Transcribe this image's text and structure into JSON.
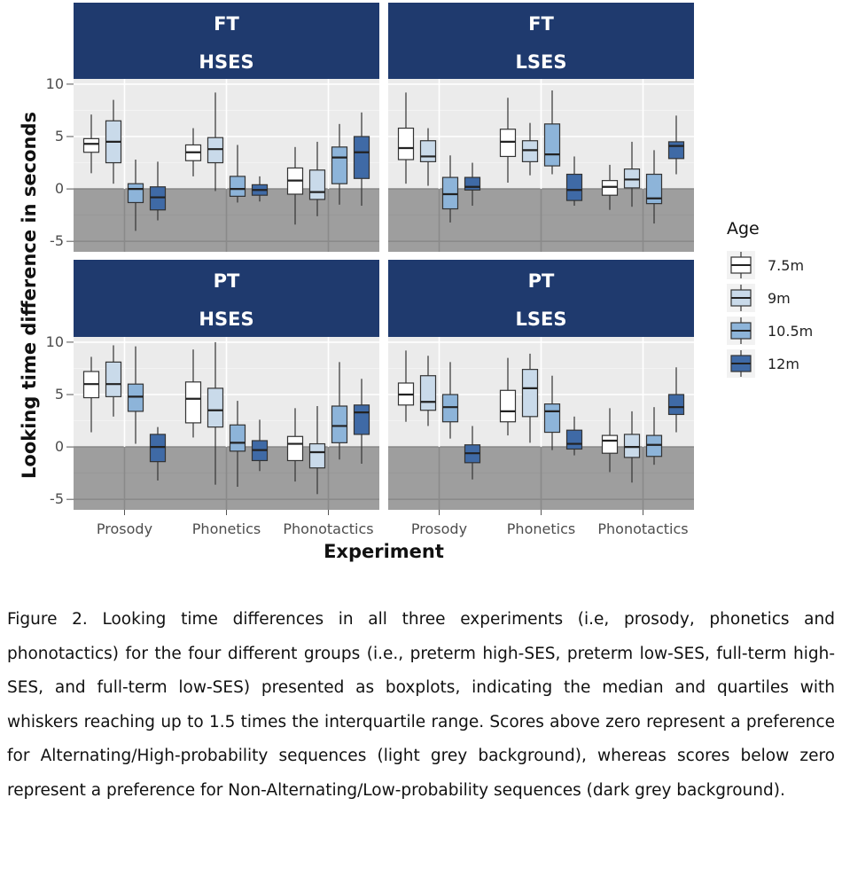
{
  "chart_data": {
    "type": "boxplot",
    "xlabel": "Experiment",
    "ylabel": "Looking time difference in seconds",
    "ylim": [
      -6,
      10.5
    ],
    "yticks": [
      -5,
      0,
      5,
      10
    ],
    "categories": [
      "Prosody",
      "Phonetics",
      "Phonotactics"
    ],
    "legend": {
      "title": "Age",
      "position": "right",
      "entries": [
        {
          "label": "7.5m",
          "color": "#ffffff"
        },
        {
          "label": "9m",
          "color": "#c9daea"
        },
        {
          "label": "10.5m",
          "color": "#8db4d9"
        },
        {
          "label": "12m",
          "color": "#3f6aa6"
        }
      ]
    },
    "panels": [
      {
        "strip_top": "FT",
        "strip_bottom": "HSES",
        "groups": [
          [
            {
              "min": 1.5,
              "q1": 3.5,
              "median": 4.3,
              "q3": 4.8,
              "max": 7.1
            },
            {
              "min": 0.5,
              "q1": 2.5,
              "median": 4.5,
              "q3": 6.5,
              "max": 8.5
            },
            {
              "min": -4.0,
              "q1": -1.3,
              "median": 0.0,
              "q3": 0.5,
              "max": 2.8
            },
            {
              "min": -3.0,
              "q1": -2.0,
              "median": -0.8,
              "q3": 0.2,
              "max": 2.6
            }
          ],
          [
            {
              "min": 1.2,
              "q1": 2.7,
              "median": 3.5,
              "q3": 4.2,
              "max": 5.8
            },
            {
              "min": -0.2,
              "q1": 2.5,
              "median": 3.8,
              "q3": 4.9,
              "max": 9.2
            },
            {
              "min": -1.3,
              "q1": -0.7,
              "median": 0.0,
              "q3": 1.2,
              "max": 4.2
            },
            {
              "min": -1.2,
              "q1": -0.6,
              "median": -0.1,
              "q3": 0.4,
              "max": 1.2
            }
          ],
          [
            {
              "min": -3.4,
              "q1": -0.5,
              "median": 0.8,
              "q3": 2.0,
              "max": 4.0
            },
            {
              "min": -2.6,
              "q1": -1.0,
              "median": -0.3,
              "q3": 1.8,
              "max": 4.5
            },
            {
              "min": -1.5,
              "q1": 0.5,
              "median": 3.0,
              "q3": 4.0,
              "max": 6.2
            },
            {
              "min": -1.6,
              "q1": 1.0,
              "median": 3.5,
              "q3": 5.0,
              "max": 7.3
            }
          ]
        ]
      },
      {
        "strip_top": "FT",
        "strip_bottom": "LSES",
        "groups": [
          [
            {
              "min": 0.5,
              "q1": 2.8,
              "median": 3.9,
              "q3": 5.8,
              "max": 9.2
            },
            {
              "min": 0.3,
              "q1": 2.6,
              "median": 3.1,
              "q3": 4.6,
              "max": 5.8
            },
            {
              "min": -3.2,
              "q1": -1.9,
              "median": -0.5,
              "q3": 1.1,
              "max": 3.2
            },
            {
              "min": -1.6,
              "q1": -0.1,
              "median": 0.2,
              "q3": 1.1,
              "max": 2.5
            }
          ],
          [
            {
              "min": 0.6,
              "q1": 3.1,
              "median": 4.5,
              "q3": 5.7,
              "max": 8.7
            },
            {
              "min": 1.3,
              "q1": 2.6,
              "median": 3.7,
              "q3": 4.6,
              "max": 6.3
            },
            {
              "min": 1.4,
              "q1": 2.2,
              "median": 3.3,
              "q3": 6.2,
              "max": 9.4
            },
            {
              "min": -1.6,
              "q1": -1.1,
              "median": -0.1,
              "q3": 1.4,
              "max": 3.1
            }
          ],
          [
            {
              "min": -2.0,
              "q1": -0.6,
              "median": 0.2,
              "q3": 0.8,
              "max": 2.3
            },
            {
              "min": -1.7,
              "q1": 0.1,
              "median": 0.9,
              "q3": 1.9,
              "max": 4.5
            },
            {
              "min": -3.3,
              "q1": -1.4,
              "median": -0.9,
              "q3": 1.4,
              "max": 3.7
            },
            {
              "min": 1.4,
              "q1": 2.9,
              "median": 4.1,
              "q3": 4.5,
              "max": 7.0
            }
          ]
        ]
      },
      {
        "strip_top": "PT",
        "strip_bottom": "HSES",
        "groups": [
          [
            {
              "min": 1.4,
              "q1": 4.7,
              "median": 6.0,
              "q3": 7.2,
              "max": 8.6
            },
            {
              "min": 2.9,
              "q1": 4.8,
              "median": 6.0,
              "q3": 8.1,
              "max": 9.7
            },
            {
              "min": 0.3,
              "q1": 3.4,
              "median": 4.8,
              "q3": 6.0,
              "max": 9.6
            },
            {
              "min": -3.2,
              "q1": -1.4,
              "median": 0.0,
              "q3": 1.2,
              "max": 1.9
            }
          ],
          [
            {
              "min": 0.9,
              "q1": 2.3,
              "median": 4.6,
              "q3": 6.2,
              "max": 9.3
            },
            {
              "min": -3.6,
              "q1": 1.9,
              "median": 3.5,
              "q3": 5.6,
              "max": 10.0
            },
            {
              "min": -3.8,
              "q1": -0.4,
              "median": 0.4,
              "q3": 2.1,
              "max": 4.4
            },
            {
              "min": -2.3,
              "q1": -1.3,
              "median": -0.3,
              "q3": 0.6,
              "max": 2.6
            }
          ],
          [
            {
              "min": -3.3,
              "q1": -1.3,
              "median": 0.3,
              "q3": 1.0,
              "max": 3.7
            },
            {
              "min": -4.5,
              "q1": -2.0,
              "median": -0.5,
              "q3": 0.3,
              "max": 3.9
            },
            {
              "min": -1.2,
              "q1": 0.4,
              "median": 2.0,
              "q3": 3.9,
              "max": 8.1
            },
            {
              "min": -1.6,
              "q1": 1.2,
              "median": 3.3,
              "q3": 4.0,
              "max": 6.5
            }
          ]
        ]
      },
      {
        "strip_top": "PT",
        "strip_bottom": "LSES",
        "groups": [
          [
            {
              "min": 2.4,
              "q1": 4.0,
              "median": 5.0,
              "q3": 6.1,
              "max": 9.2
            },
            {
              "min": 2.0,
              "q1": 3.5,
              "median": 4.3,
              "q3": 6.8,
              "max": 8.7
            },
            {
              "min": 0.8,
              "q1": 2.4,
              "median": 3.8,
              "q3": 5.0,
              "max": 8.1
            },
            {
              "min": -3.1,
              "q1": -1.5,
              "median": -0.6,
              "q3": 0.2,
              "max": 2.0
            }
          ],
          [
            {
              "min": 1.1,
              "q1": 2.4,
              "median": 3.4,
              "q3": 5.4,
              "max": 8.5
            },
            {
              "min": 0.4,
              "q1": 2.9,
              "median": 5.6,
              "q3": 7.4,
              "max": 8.9
            },
            {
              "min": -0.3,
              "q1": 1.4,
              "median": 3.4,
              "q3": 4.1,
              "max": 6.8
            },
            {
              "min": -0.8,
              "q1": -0.2,
              "median": 0.3,
              "q3": 1.6,
              "max": 2.9
            }
          ],
          [
            {
              "min": -2.4,
              "q1": -0.6,
              "median": 0.6,
              "q3": 1.1,
              "max": 3.7
            },
            {
              "min": -3.4,
              "q1": -1.0,
              "median": 0.0,
              "q3": 1.2,
              "max": 3.4
            },
            {
              "min": -1.7,
              "q1": -0.9,
              "median": 0.2,
              "q3": 1.1,
              "max": 3.8
            },
            {
              "min": 1.4,
              "q1": 3.1,
              "median": 3.8,
              "q3": 5.0,
              "max": 7.6
            }
          ]
        ]
      }
    ]
  },
  "caption": "Figure 2. Looking time differences in all three experiments (i.e, prosody, phonetics and phonotactics) for the four different groups (i.e., preterm high-SES, preterm low-SES, full-term high-SES, and full-term low-SES) presented as boxplots, indicating the median and quartiles with whiskers reaching up to 1.5 times the interquartile range. Scores above zero represent a preference for Alternating/High-probability sequences (light grey background), whereas scores below zero represent a preference for Non-Alternating/Low-probability sequences (dark grey background)."
}
